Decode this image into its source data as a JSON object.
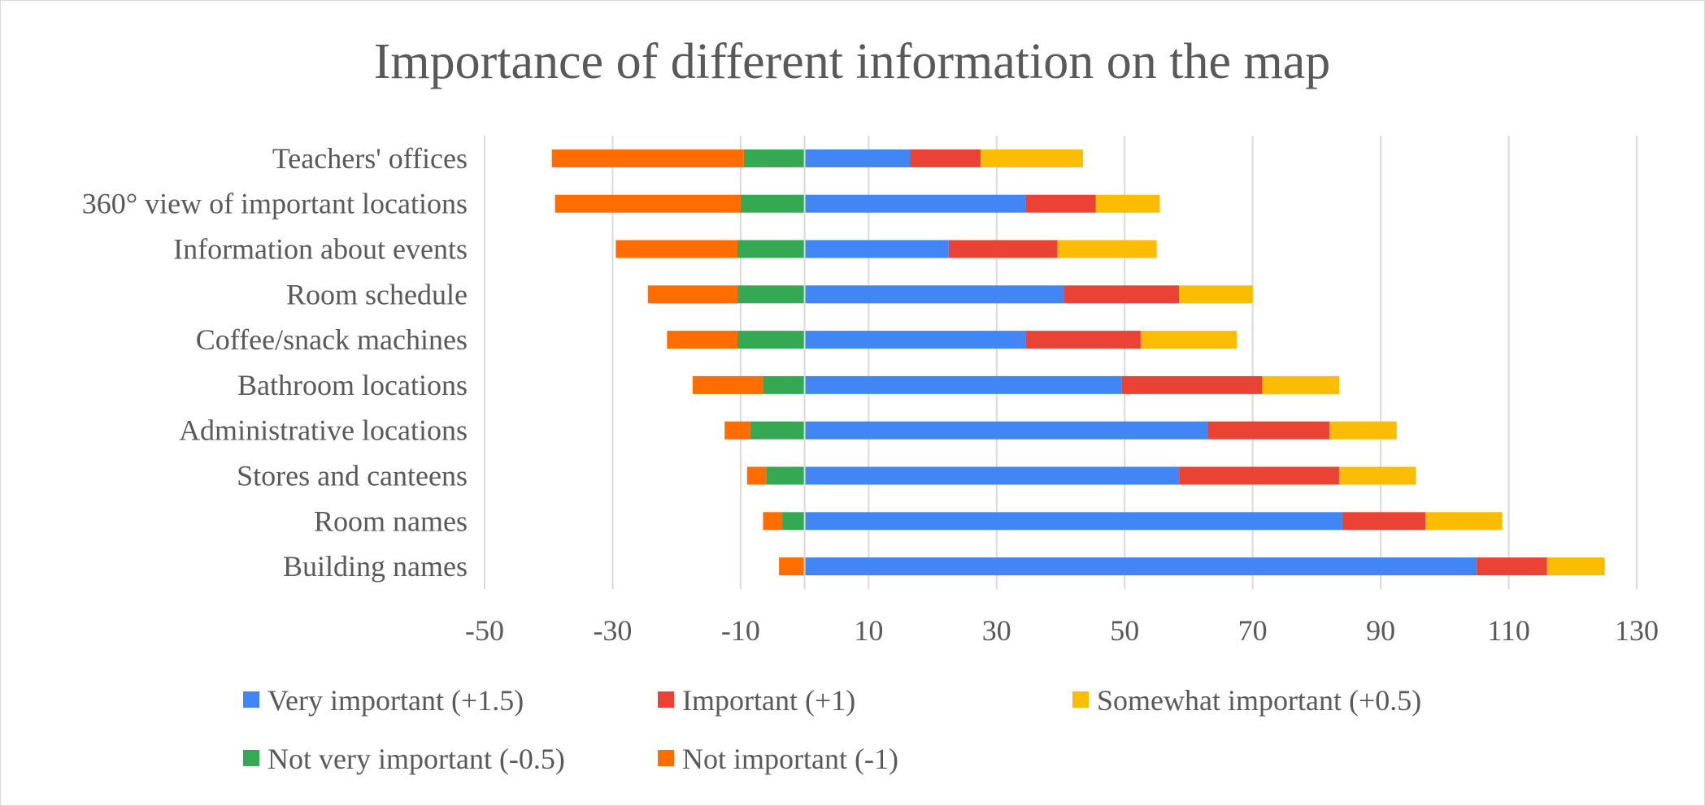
{
  "chart_data": {
    "type": "bar",
    "orientation": "horizontal",
    "stacked": "diverging",
    "title": "Importance of different information on the map",
    "xlabel": "",
    "ylabel": "",
    "xlim": [
      -50,
      130
    ],
    "xticks": [
      "-50",
      "-30",
      "-10",
      "10",
      "30",
      "50",
      "70",
      "90",
      "110",
      "130"
    ],
    "grid": true,
    "legend_position": "bottom",
    "categories": [
      "Teachers' offices",
      "360° view of important locations",
      "Information about events",
      "Room schedule",
      "Coffee/snack machines",
      "Bathroom locations",
      "Administrative locations",
      "Stores and canteens",
      "Room names",
      "Building names"
    ],
    "series": [
      {
        "name": "Very important (+1.5)",
        "color": "#4285F4",
        "values": [
          16.5,
          34.5,
          22.5,
          40.5,
          34.5,
          49.5,
          63,
          58.5,
          84,
          105
        ]
      },
      {
        "name": "Important (+1)",
        "color": "#EA4335",
        "values": [
          11,
          11,
          17,
          18,
          18,
          22,
          19,
          25,
          13,
          11
        ]
      },
      {
        "name": "Somewhat important (+0.5)",
        "color": "#FBBC04",
        "values": [
          16,
          10,
          15.5,
          11.5,
          15,
          12,
          10.5,
          12,
          12,
          9
        ]
      },
      {
        "name": "Not very important (-0.5)",
        "color": "#34A853",
        "values": [
          -9.5,
          -10,
          -10.5,
          -10.5,
          -10.5,
          -6.5,
          -8.5,
          -6,
          -3.5,
          0
        ]
      },
      {
        "name": "Not important (-1)",
        "color": "#FF6D01",
        "values": [
          -30,
          -29,
          -19,
          -14,
          -11,
          -11,
          -4,
          -3,
          -3,
          -4
        ]
      }
    ]
  }
}
